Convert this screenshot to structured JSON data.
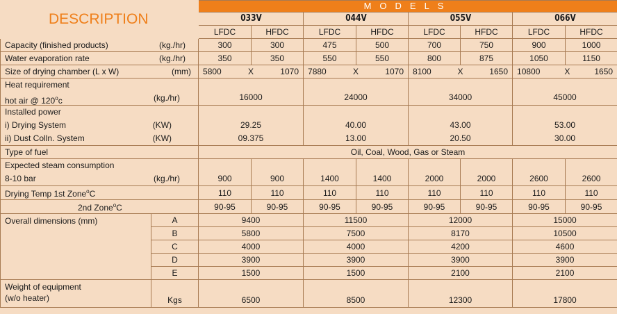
{
  "header": {
    "description": "DESCRIPTION",
    "models_label": "MODELS",
    "models": [
      "033V",
      "044V",
      "055V",
      "066V"
    ],
    "sub": [
      "LFDC",
      "HFDC",
      "LFDC",
      "HFDC",
      "LFDC",
      "HFDC",
      "LFDC",
      "HFDC"
    ]
  },
  "capacity": {
    "label": "Capacity (finished products)",
    "unit": "(kg./hr)",
    "values": [
      "300",
      "300",
      "475",
      "500",
      "700",
      "750",
      "900",
      "1000"
    ]
  },
  "water_evap": {
    "label": "Water evaporation rate",
    "unit": "(kg./hr)",
    "values": [
      "350",
      "350",
      "550",
      "550",
      "800",
      "875",
      "1050",
      "1150"
    ]
  },
  "chamber": {
    "label": "Size of drying chamber (L x W)",
    "unit": "(mm)",
    "x": "X",
    "values": [
      {
        "l": "5800",
        "w": "1070"
      },
      {
        "l": "7880",
        "w": "1070"
      },
      {
        "l": "8100",
        "w": "1650"
      },
      {
        "l": "10800",
        "w": "1650"
      }
    ]
  },
  "heat": {
    "label1": "Heat requirement",
    "label2": "hot air  @ 120",
    "label2_sup": "o",
    "label2_tail": "c",
    "unit": "(kg./hr)",
    "values": [
      "16000",
      "24000",
      "34000",
      "45000"
    ]
  },
  "power": {
    "label": "Installed  power",
    "drying_label": "i)  Drying System",
    "drying_unit": "(KW)",
    "dust_label": "ii) Dust Colln. System",
    "dust_unit": "(KW)",
    "drying": [
      "29.25",
      "40.00",
      "43.00",
      "53.00"
    ],
    "dust": [
      "09.375",
      "13.00",
      "20.50",
      "30.00"
    ]
  },
  "fuel": {
    "label": "Type of fuel",
    "value": "Oil, Coal, Wood, Gas or Steam"
  },
  "steam": {
    "label1": "Expected steam consumption",
    "label2": "8-10 bar",
    "unit": "(kg./hr)",
    "values": [
      "900",
      "900",
      "1400",
      "1400",
      "2000",
      "2000",
      "2600",
      "2600"
    ]
  },
  "temp1": {
    "label": "Drying Temp   1st Zone",
    "sup": "o",
    "tail": "C",
    "values": [
      "110",
      "110",
      "110",
      "110",
      "110",
      "110",
      "110",
      "110"
    ]
  },
  "temp2": {
    "label": "2nd Zone",
    "sup": "o",
    "tail": "C",
    "values": [
      "90-95",
      "90-95",
      "90-95",
      "90-95",
      "90-95",
      "90-95",
      "90-95",
      "90-95"
    ]
  },
  "dimensions": {
    "label": "Overall dimensions (mm)",
    "rows": [
      {
        "key": "A",
        "values": [
          "9400",
          "11500",
          "12000",
          "15000"
        ]
      },
      {
        "key": "B",
        "values": [
          "5800",
          "7500",
          "8170",
          "10500"
        ]
      },
      {
        "key": "C",
        "values": [
          "4000",
          "4000",
          "4200",
          "4600"
        ]
      },
      {
        "key": "D",
        "values": [
          "3900",
          "3900",
          "3900",
          "3900"
        ]
      },
      {
        "key": "E",
        "values": [
          "1500",
          "1500",
          "2100",
          "2100"
        ]
      }
    ]
  },
  "weight": {
    "label1": "Weight of equipment",
    "label2": "(w/o heater)",
    "unit": "Kgs",
    "values": [
      "6500",
      "8500",
      "12300",
      "17800"
    ]
  },
  "colors": {
    "background": "#f6dcc3",
    "accent": "#ef7f1a",
    "border": "#a77a52"
  }
}
